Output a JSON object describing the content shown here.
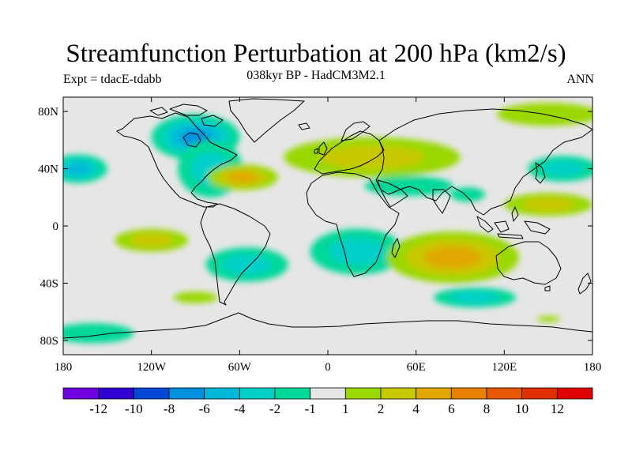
{
  "title": "Streamfunction Perturbation at 200 hPa (km2/s)",
  "subtitle_left": "Expt = tdacE-tdabb",
  "subtitle_center": "038kyr BP - HadCM3M2.1",
  "subtitle_right": "ANN",
  "map_data": {
    "projection": "equirectangular",
    "lon_range": [
      -180,
      180
    ],
    "lat_range": [
      -90,
      90
    ],
    "x_ticks": [
      {
        "value": -180,
        "label": "180"
      },
      {
        "value": -120,
        "label": "120W"
      },
      {
        "value": -60,
        "label": "60W"
      },
      {
        "value": 0,
        "label": "0"
      },
      {
        "value": 60,
        "label": "60E"
      },
      {
        "value": 120,
        "label": "120E"
      },
      {
        "value": 180,
        "label": "180"
      }
    ],
    "y_ticks": [
      {
        "value": 80,
        "label": "80N"
      },
      {
        "value": 40,
        "label": "40N"
      },
      {
        "value": 0,
        "label": "0"
      },
      {
        "value": -40,
        "label": "40S"
      },
      {
        "value": -80,
        "label": "80S"
      }
    ],
    "background_color": "#e6e6e6",
    "anomalies": [
      {
        "lon": -90,
        "lat": 62,
        "rx": 30,
        "ry": 16,
        "value": -7.5,
        "name": "north-america-low"
      },
      {
        "lon": -80,
        "lat": 40,
        "rx": 22,
        "ry": 20,
        "value": -2.8,
        "name": "n-america-trough"
      },
      {
        "lon": -58,
        "lat": 34,
        "rx": 24,
        "ry": 9,
        "value": 4.2,
        "name": "w-atlantic-high"
      },
      {
        "lon": -170,
        "lat": 40,
        "rx": 20,
        "ry": 10,
        "value": -4.2,
        "name": "n-pacific-low"
      },
      {
        "lon": 30,
        "lat": 48,
        "rx": 60,
        "ry": 14,
        "value": 2.6,
        "name": "eurasia-high"
      },
      {
        "lon": 150,
        "lat": 78,
        "rx": 35,
        "ry": 8,
        "value": 1.5,
        "name": "arctic-high"
      },
      {
        "lon": 55,
        "lat": 28,
        "rx": 30,
        "ry": 7,
        "value": -1.5,
        "name": "middle-east-low"
      },
      {
        "lon": 160,
        "lat": 40,
        "rx": 24,
        "ry": 9,
        "value": -3.5,
        "name": "nw-pacific-low"
      },
      {
        "lon": 150,
        "lat": 15,
        "rx": 30,
        "ry": 8,
        "value": 2.8,
        "name": "w-pacific-high"
      },
      {
        "lon": 95,
        "lat": 22,
        "rx": 12,
        "ry": 5,
        "value": -1.5,
        "name": "asia-low"
      },
      {
        "lon": -120,
        "lat": -10,
        "rx": 25,
        "ry": 8,
        "value": 2.5,
        "name": "e-pacific-high"
      },
      {
        "lon": -55,
        "lat": -27,
        "rx": 28,
        "ry": 12,
        "value": -3.2,
        "name": "s-america-low"
      },
      {
        "lon": 20,
        "lat": -18,
        "rx": 32,
        "ry": 16,
        "value": -3.4,
        "name": "s-atlantic-low"
      },
      {
        "lon": 85,
        "lat": -22,
        "rx": 45,
        "ry": 18,
        "value": 4.8,
        "name": "indian-ocean-high"
      },
      {
        "lon": 100,
        "lat": -50,
        "rx": 28,
        "ry": 7,
        "value": -3.0,
        "name": "southern-ocean-low"
      },
      {
        "lon": -160,
        "lat": -75,
        "rx": 28,
        "ry": 7,
        "value": -1.8,
        "name": "antarctic-pacific-low"
      },
      {
        "lon": -90,
        "lat": -50,
        "rx": 15,
        "ry": 4,
        "value": 1.6,
        "name": "s-pacific-high"
      },
      {
        "lon": 150,
        "lat": -65,
        "rx": 8,
        "ry": 2,
        "value": 1.5,
        "name": "antarctic-small-high"
      }
    ]
  },
  "colorbar": {
    "colors": [
      "#7000e0",
      "#3000d0",
      "#0048d8",
      "#0090e0",
      "#00b8d8",
      "#00d0c8",
      "#00d898",
      "#e6e6e6",
      "#99d800",
      "#c8c800",
      "#e0a800",
      "#e88000",
      "#e85800",
      "#e03000",
      "#e00000"
    ],
    "labels": [
      "-12",
      "-10",
      "-8",
      "-6",
      "-4",
      "-2",
      "-1",
      "1",
      "2",
      "4",
      "6",
      "8",
      "10",
      "12"
    ],
    "thresholds": [
      -12,
      -10,
      -8,
      -6,
      -4,
      -2,
      -1,
      1,
      2,
      4,
      6,
      8,
      10,
      12
    ]
  }
}
